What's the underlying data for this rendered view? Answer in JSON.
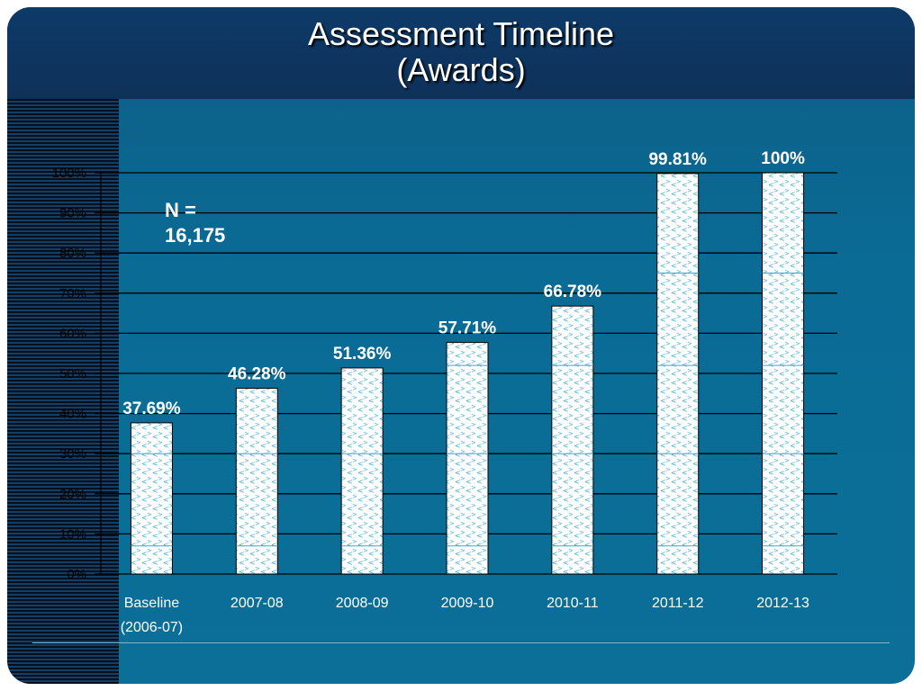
{
  "slide": {
    "title_line1": "Assessment Timeline",
    "title_line2": "(Awards)",
    "n_label": "N =\n16,175"
  },
  "colors": {
    "header": "#0e3a68",
    "background": "#0a6c95",
    "bar_fill": "#ffffff",
    "bar_pattern": "#3aa9d6",
    "text": "#ffffff",
    "axis_text": "#000000"
  },
  "chart_data": {
    "type": "bar",
    "title": "Assessment Timeline (Awards)",
    "categories": [
      [
        "Baseline",
        "(2006-07)"
      ],
      [
        "2007-08"
      ],
      [
        "2008-09"
      ],
      [
        "2009-10"
      ],
      [
        "2010-11"
      ],
      [
        "2011-12"
      ],
      [
        "2012-13"
      ]
    ],
    "values": [
      37.69,
      46.28,
      51.36,
      57.71,
      66.78,
      99.81,
      100
    ],
    "data_labels": [
      "37.69%",
      "46.28%",
      "51.36%",
      "57.71%",
      "66.78%",
      "99.81%",
      "100%"
    ],
    "y_ticks": [
      "0%",
      "10%",
      "20%",
      "30%",
      "40%",
      "50%",
      "60%",
      "70%",
      "80%",
      "90%",
      "100%"
    ],
    "ylim": [
      0,
      100
    ],
    "grid": true,
    "legend": "none"
  }
}
